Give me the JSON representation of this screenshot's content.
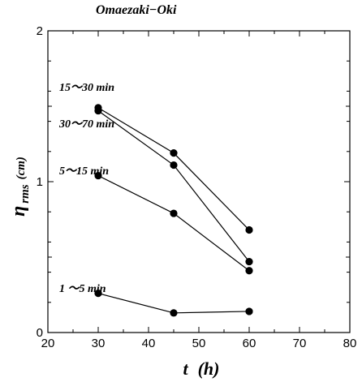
{
  "chart_data": {
    "type": "line",
    "title": "Omaezaki−Oki",
    "xlabel": {
      "main": "t",
      "unit": "(h)"
    },
    "ylabel": {
      "main": "η",
      "sub": "rms",
      "unit": "(cm)"
    },
    "xlim": [
      20,
      80
    ],
    "ylim": [
      0,
      2
    ],
    "xticks": [
      20,
      30,
      40,
      50,
      60,
      70,
      80
    ],
    "yticks": [
      0,
      1,
      2
    ],
    "x": [
      30,
      45,
      60
    ],
    "series": [
      {
        "name": "15〜30 min",
        "values": [
          1.49,
          1.19,
          0.68
        ]
      },
      {
        "name": "30〜70 min",
        "values": [
          1.47,
          1.11,
          0.47
        ]
      },
      {
        "name": "5〜15 min",
        "values": [
          1.04,
          0.79,
          0.41
        ]
      },
      {
        "name": "1 〜5 min",
        "values": [
          0.26,
          0.13,
          0.14
        ]
      }
    ],
    "grid": false,
    "legend": "inline labels left of first points",
    "marker_color": "#000000",
    "line_color": "#000000"
  }
}
